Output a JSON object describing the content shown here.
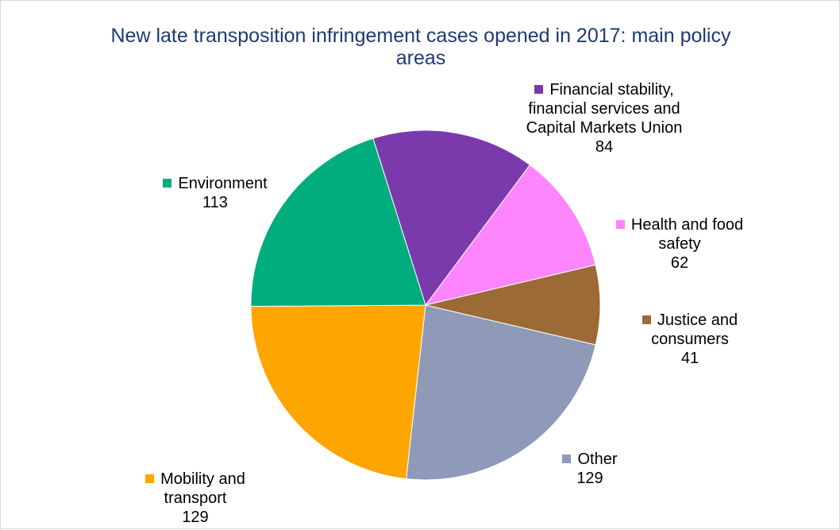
{
  "chart_data": {
    "type": "pie",
    "title": "New late transposition infringement cases opened in 2017: main policy areas",
    "categories": [
      "Financial stability, financial services and Capital Markets Union",
      "Health and food safety",
      "Justice and consumers",
      "Other",
      "Mobility and transport",
      "Environment"
    ],
    "values": [
      84,
      62,
      41,
      129,
      129,
      113
    ],
    "colors": [
      "#7b3aac",
      "#ff85ff",
      "#9c6a35",
      "#8e9ab8",
      "#ffa500",
      "#00ad7c"
    ]
  }
}
